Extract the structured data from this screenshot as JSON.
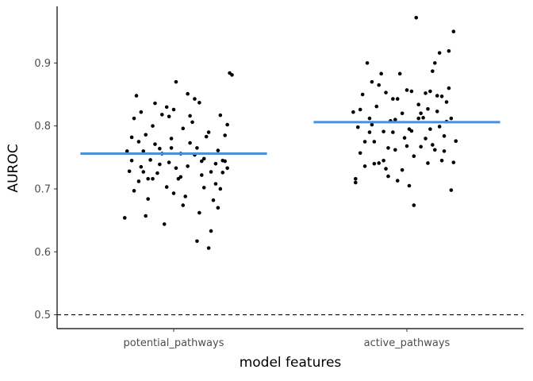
{
  "chart_data": {
    "type": "scatter",
    "title": "",
    "xlabel": "model features",
    "ylabel": "AUROC",
    "categories": [
      "potential_pathways",
      "active_pathways"
    ],
    "ylim": [
      0.478,
      0.99
    ],
    "yticks": [
      0.5,
      0.6,
      0.7,
      0.8,
      0.9
    ],
    "ytick_labels": [
      "0.5",
      "0.6",
      "0.7",
      "0.8",
      "0.9"
    ],
    "reference_line": {
      "y": 0.5,
      "style": "dashed"
    },
    "median_color": "#4a90d9",
    "point_color": "#000000",
    "grid": false,
    "legend": "none",
    "series": [
      {
        "category": "potential_pathways",
        "median": 0.756,
        "points": [
          [
            -0.21,
            0.654
          ],
          [
            -0.19,
            0.728
          ],
          [
            -0.18,
            0.782
          ],
          [
            -0.17,
            0.812
          ],
          [
            -0.16,
            0.848
          ],
          [
            -0.15,
            0.712
          ],
          [
            -0.14,
            0.735
          ],
          [
            -0.13,
            0.76
          ],
          [
            -0.12,
            0.786
          ],
          [
            -0.11,
            0.684
          ],
          [
            -0.1,
            0.746
          ],
          [
            -0.09,
            0.8
          ],
          [
            -0.08,
            0.836
          ],
          [
            -0.07,
            0.725
          ],
          [
            -0.06,
            0.764
          ],
          [
            -0.05,
            0.818
          ],
          [
            -0.04,
            0.644
          ],
          [
            -0.03,
            0.703
          ],
          [
            -0.02,
            0.742
          ],
          [
            -0.01,
            0.78
          ],
          [
            0.0,
            0.826
          ],
          [
            0.01,
            0.87
          ],
          [
            0.02,
            0.716
          ],
          [
            0.03,
            0.756
          ],
          [
            0.04,
            0.796
          ],
          [
            0.05,
            0.688
          ],
          [
            0.06,
            0.736
          ],
          [
            0.07,
            0.773
          ],
          [
            0.08,
            0.806
          ],
          [
            0.09,
            0.843
          ],
          [
            0.1,
            0.617
          ],
          [
            0.11,
            0.662
          ],
          [
            0.12,
            0.722
          ],
          [
            0.13,
            0.748
          ],
          [
            0.14,
            0.783
          ],
          [
            0.15,
            0.606
          ],
          [
            0.16,
            0.633
          ],
          [
            0.17,
            0.682
          ],
          [
            0.18,
            0.74
          ],
          [
            0.19,
            0.761
          ],
          [
            0.2,
            0.817
          ],
          [
            0.21,
            0.726
          ],
          [
            0.22,
            0.744
          ],
          [
            0.23,
            0.802
          ],
          [
            0.24,
            0.884
          ],
          [
            0.25,
            0.881
          ],
          [
            -0.2,
            0.76
          ],
          [
            -0.17,
            0.697
          ],
          [
            -0.14,
            0.822
          ],
          [
            -0.11,
            0.716
          ],
          [
            -0.08,
            0.771
          ],
          [
            -0.05,
            0.756
          ],
          [
            -0.02,
            0.815
          ],
          [
            0.01,
            0.733
          ],
          [
            0.04,
            0.674
          ],
          [
            0.07,
            0.816
          ],
          [
            0.1,
            0.765
          ],
          [
            0.13,
            0.702
          ],
          [
            0.16,
            0.727
          ],
          [
            0.19,
            0.67
          ],
          [
            0.22,
            0.785
          ],
          [
            -0.18,
            0.745
          ],
          [
            -0.12,
            0.657
          ],
          [
            -0.06,
            0.739
          ],
          [
            0.0,
            0.693
          ],
          [
            0.06,
            0.851
          ],
          [
            0.12,
            0.744
          ],
          [
            0.18,
            0.708
          ],
          [
            0.23,
            0.733
          ],
          [
            -0.15,
            0.775
          ],
          [
            -0.09,
            0.716
          ],
          [
            -0.03,
            0.83
          ],
          [
            0.03,
            0.719
          ],
          [
            0.09,
            0.754
          ],
          [
            0.15,
            0.79
          ],
          [
            0.21,
            0.745
          ],
          [
            -0.13,
            0.727
          ],
          [
            -0.01,
            0.765
          ],
          [
            0.11,
            0.837
          ],
          [
            0.2,
            0.7
          ]
        ]
      },
      {
        "category": "active_pathways",
        "median": 0.806,
        "points": [
          [
            -0.23,
            0.822
          ],
          [
            -0.22,
            0.716
          ],
          [
            -0.21,
            0.798
          ],
          [
            -0.2,
            0.757
          ],
          [
            -0.19,
            0.85
          ],
          [
            -0.18,
            0.736
          ],
          [
            -0.17,
            0.9
          ],
          [
            -0.16,
            0.812
          ],
          [
            -0.15,
            0.87
          ],
          [
            -0.14,
            0.775
          ],
          [
            -0.13,
            0.831
          ],
          [
            -0.12,
            0.741
          ],
          [
            -0.11,
            0.883
          ],
          [
            -0.1,
            0.791
          ],
          [
            -0.09,
            0.853
          ],
          [
            -0.08,
            0.72
          ],
          [
            -0.07,
            0.808
          ],
          [
            -0.06,
            0.843
          ],
          [
            -0.05,
            0.762
          ],
          [
            -0.04,
            0.713
          ],
          [
            -0.03,
            0.883
          ],
          [
            -0.02,
            0.82
          ],
          [
            -0.01,
            0.781
          ],
          [
            0.0,
            0.857
          ],
          [
            0.01,
            0.705
          ],
          [
            0.02,
            0.792
          ],
          [
            0.03,
            0.674
          ],
          [
            0.04,
            0.972
          ],
          [
            0.05,
            0.834
          ],
          [
            0.06,
            0.767
          ],
          [
            0.07,
            0.813
          ],
          [
            0.08,
            0.852
          ],
          [
            0.09,
            0.741
          ],
          [
            0.1,
            0.795
          ],
          [
            0.11,
            0.887
          ],
          [
            0.12,
            0.762
          ],
          [
            0.13,
            0.823
          ],
          [
            0.14,
            0.916
          ],
          [
            0.15,
            0.847
          ],
          [
            0.16,
            0.784
          ],
          [
            0.17,
            0.807
          ],
          [
            0.18,
            0.919
          ],
          [
            0.19,
            0.698
          ],
          [
            0.2,
            0.95
          ],
          [
            0.21,
            0.776
          ],
          [
            -0.2,
            0.826
          ],
          [
            -0.15,
            0.802
          ],
          [
            -0.1,
            0.745
          ],
          [
            -0.05,
            0.81
          ],
          [
            0.0,
            0.768
          ],
          [
            0.05,
            0.812
          ],
          [
            0.1,
            0.855
          ],
          [
            0.15,
            0.745
          ],
          [
            0.18,
            0.86
          ],
          [
            -0.18,
            0.775
          ],
          [
            -0.12,
            0.865
          ],
          [
            -0.06,
            0.79
          ],
          [
            0.02,
            0.855
          ],
          [
            0.08,
            0.78
          ],
          [
            0.12,
            0.9
          ],
          [
            0.17,
            0.838
          ],
          [
            -0.22,
            0.71
          ],
          [
            -0.14,
            0.74
          ],
          [
            -0.08,
            0.765
          ],
          [
            -0.02,
            0.73
          ],
          [
            0.06,
            0.82
          ],
          [
            0.11,
            0.77
          ],
          [
            0.16,
            0.76
          ],
          [
            0.2,
            0.742
          ],
          [
            -0.16,
            0.79
          ],
          [
            -0.04,
            0.843
          ],
          [
            0.03,
            0.752
          ],
          [
            0.09,
            0.827
          ],
          [
            0.14,
            0.799
          ],
          [
            -0.09,
            0.732
          ],
          [
            0.01,
            0.795
          ],
          [
            0.13,
            0.848
          ],
          [
            0.19,
            0.812
          ]
        ]
      }
    ]
  }
}
